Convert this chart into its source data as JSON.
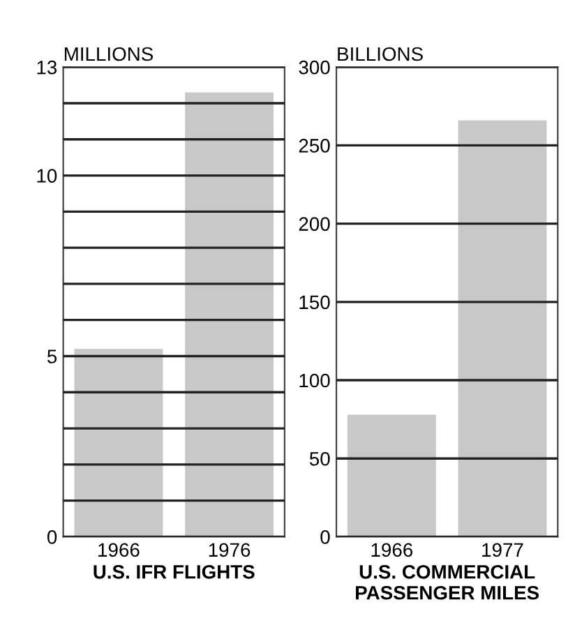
{
  "chart_data": [
    {
      "type": "bar",
      "ylabel": "MILLIONS",
      "xlabel": "U.S. IFR FLIGHTS",
      "categories": [
        "1966",
        "1976"
      ],
      "values": [
        5.2,
        12.3
      ],
      "color": "#c8c8c8",
      "ylim": [
        0,
        13
      ],
      "yticks": [
        0,
        {
          "value": 1,
          "label": null
        },
        {
          "value": 2,
          "label": null
        },
        {
          "value": 3,
          "label": null
        },
        {
          "value": 4,
          "label": null
        },
        5,
        {
          "value": 6,
          "label": null
        },
        {
          "value": 7,
          "label": null
        },
        {
          "value": 8,
          "label": null
        },
        {
          "value": 9,
          "label": null
        },
        10,
        {
          "value": 11,
          "label": null
        },
        {
          "value": 12,
          "label": null
        },
        13
      ],
      "grid": "y"
    },
    {
      "type": "bar",
      "ylabel": "BILLIONS",
      "xlabel": "U.S. COMMERCIAL\nPASSENGER MILES",
      "categories": [
        "1966",
        "1977"
      ],
      "values": [
        78,
        266
      ],
      "color": "#c8c8c8",
      "ylim": [
        0,
        300
      ],
      "yticks": [
        0,
        50,
        100,
        150,
        200,
        250,
        300
      ],
      "grid": "y"
    }
  ]
}
